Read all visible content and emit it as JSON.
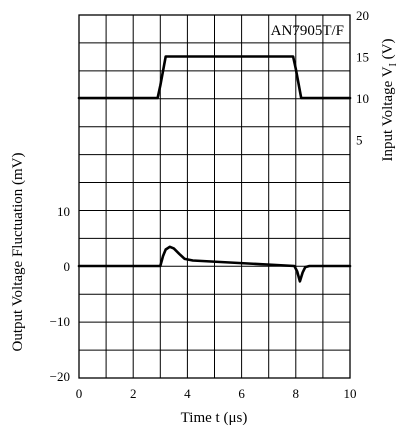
{
  "chart_data": {
    "type": "line",
    "annotation": "AN7905T/F",
    "xlabel": "Time  t (μs)",
    "ylabel_left": "Output Voltage Fluctuation (mV)",
    "ylabel_right_main": "Input Voltage  V",
    "ylabel_right_sub": "I",
    "ylabel_right_unit": " (V)",
    "xlim": [
      0,
      10
    ],
    "x_ticks": [
      "0",
      "2",
      "4",
      "6",
      "8",
      "10"
    ],
    "x_tick_values": [
      0,
      2,
      4,
      6,
      8,
      10
    ],
    "left_ylim": [
      -20,
      20
    ],
    "left_ticks": [
      "10",
      "0",
      "−10",
      "−20"
    ],
    "left_tick_values": [
      10,
      0,
      -10,
      -20
    ],
    "right_ylim": [
      0,
      20
    ],
    "right_ticks": [
      "20",
      "15",
      "10",
      "5"
    ],
    "right_tick_values": [
      20,
      15,
      10,
      5
    ],
    "grid": true,
    "series": [
      {
        "axis": "right",
        "x": [
          0,
          2.9,
          3.0,
          3.2,
          7.9,
          8.0,
          8.2,
          10
        ],
        "y": [
          10,
          10,
          11.5,
          15,
          15,
          13.5,
          10,
          10
        ]
      },
      {
        "axis": "left",
        "x": [
          0,
          3.0,
          3.1,
          3.2,
          3.35,
          3.5,
          3.7,
          3.9,
          4.2,
          7.95,
          8.05,
          8.15,
          8.25,
          8.35,
          8.5,
          10
        ],
        "y": [
          0,
          0,
          1.8,
          3.0,
          3.5,
          3.2,
          2.2,
          1.3,
          1.0,
          0,
          -1.0,
          -2.8,
          -1.2,
          -0.2,
          0,
          0
        ]
      }
    ]
  }
}
